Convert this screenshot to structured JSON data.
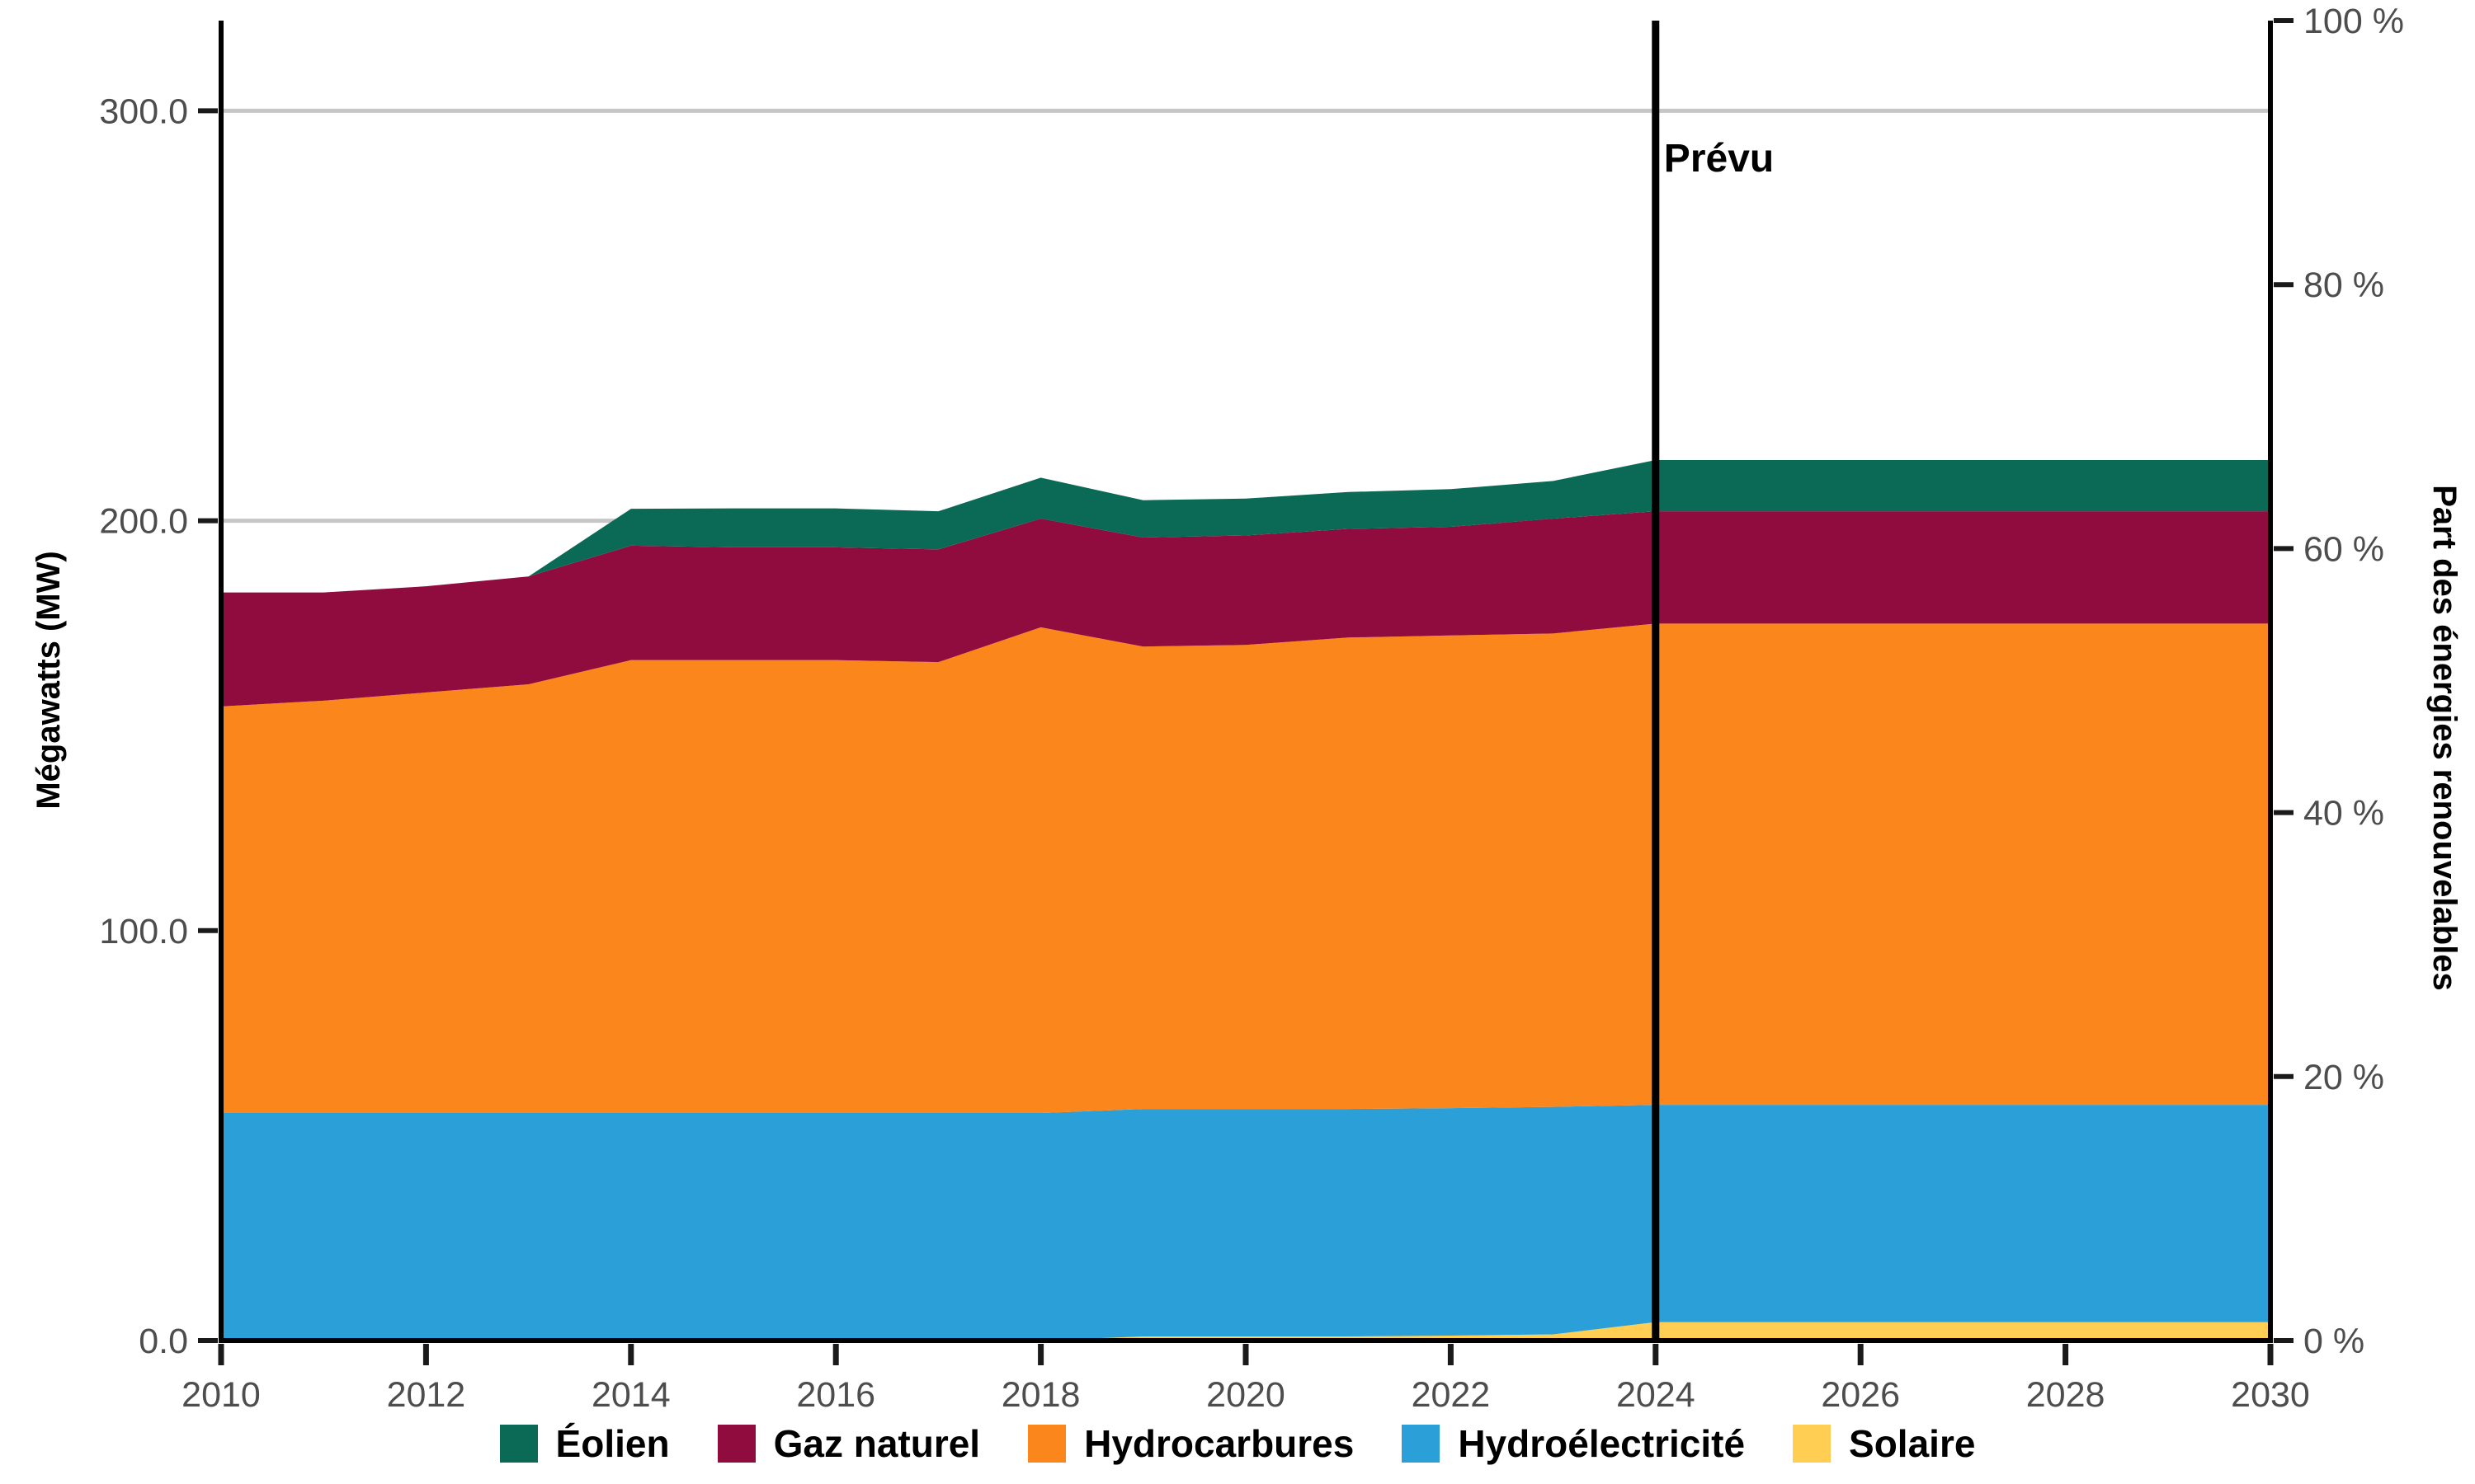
{
  "chart_data": {
    "type": "area",
    "stacked": true,
    "x": [
      2010,
      2011,
      2012,
      2013,
      2014,
      2015,
      2016,
      2017,
      2018,
      2019,
      2020,
      2021,
      2022,
      2023,
      2024,
      2025,
      2026,
      2027,
      2028,
      2029,
      2030
    ],
    "series": [
      {
        "name": "Solaire",
        "color": "#FFCE52",
        "values": [
          0,
          0,
          0,
          0,
          0,
          0,
          0,
          0,
          0,
          1,
          1,
          1,
          1.2,
          1.5,
          4.5,
          4.5,
          4.5,
          4.5,
          4.5,
          4.5,
          4.5
        ]
      },
      {
        "name": "Hydroélectricité",
        "color": "#2A9FD8",
        "values": [
          55.5,
          55.5,
          55.5,
          55.5,
          55.5,
          55.5,
          55.5,
          55.5,
          55.5,
          55.5,
          55.5,
          55.5,
          55.5,
          55.5,
          53,
          53,
          53,
          53,
          53,
          53,
          53
        ]
      },
      {
        "name": "Hydrocarbures",
        "color": "#FB861C",
        "values": [
          99.2,
          100.6,
          102.6,
          104.6,
          110.5,
          110.5,
          110.5,
          110,
          118.5,
          112.8,
          113.2,
          115,
          115.3,
          115.5,
          117.4,
          117.4,
          117.4,
          117.4,
          117.4,
          117.4,
          117.4
        ]
      },
      {
        "name": "Gaz naturel",
        "color": "#900C3F",
        "values": [
          27.8,
          26.4,
          25.9,
          26.3,
          27.9,
          27.5,
          27.5,
          27.5,
          26.5,
          26.6,
          26.7,
          26.5,
          26.5,
          28,
          27.4,
          27.4,
          27.4,
          27.4,
          27.4,
          27.4,
          27.4
        ]
      },
      {
        "name": "Éolien",
        "color": "#0B6A56",
        "values": [
          0,
          0,
          0,
          0,
          9,
          9.5,
          9.5,
          9.3,
          10,
          9.1,
          9,
          9,
          9.2,
          9.2,
          12.5,
          12.5,
          12.5,
          12.5,
          12.5,
          12.5,
          12.5
        ]
      }
    ],
    "legend": [
      "Éolien",
      "Gaz naturel",
      "Hydrocarbures",
      "Hydroélectricité",
      "Solaire"
    ],
    "left_axis": {
      "title": "Mégawatts (MW)",
      "max": 322,
      "ticks": [
        {
          "value": 0,
          "label": "0.0"
        },
        {
          "value": 100,
          "label": "100.0"
        },
        {
          "value": 200,
          "label": "200.0"
        },
        {
          "value": 300,
          "label": "300.0"
        }
      ]
    },
    "right_axis": {
      "title": "Part des énergies renouvelables",
      "max": 100,
      "ticks": [
        {
          "value": 0,
          "label": "0 %"
        },
        {
          "value": 20,
          "label": "20 %"
        },
        {
          "value": 40,
          "label": "40 %"
        },
        {
          "value": 60,
          "label": "60 %"
        },
        {
          "value": 80,
          "label": "80 %"
        },
        {
          "value": 100,
          "label": "100 %"
        }
      ]
    },
    "x_axis": {
      "tick_years": [
        2010,
        2012,
        2014,
        2016,
        2018,
        2020,
        2022,
        2024,
        2026,
        2028,
        2030
      ]
    },
    "forecast_line": {
      "year": 2024,
      "label": "Prévu"
    },
    "grid": true,
    "legend_position": "bottom"
  },
  "colors": {
    "axis": "#000000",
    "tick_mark": "#1a1a1a",
    "tick_text": "#4D4D4D",
    "grid": "#C6C6C6",
    "background": "#FFFFFF"
  }
}
